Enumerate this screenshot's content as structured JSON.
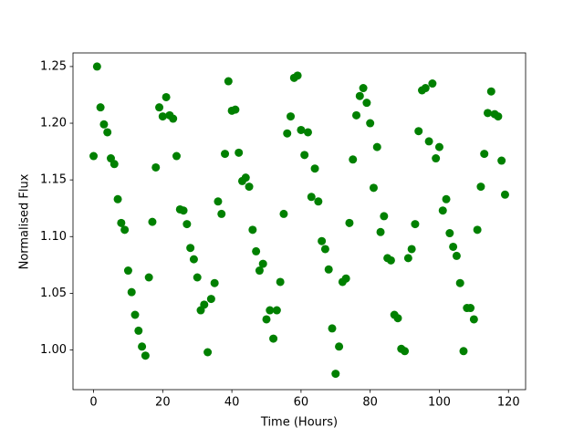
{
  "chart_data": {
    "type": "scatter",
    "xlabel": "Time (Hours)",
    "ylabel": "Normalised Flux",
    "color": "#008000",
    "x": [
      0,
      1,
      2,
      3,
      4,
      5,
      6,
      7,
      8,
      9,
      10,
      11,
      12,
      13,
      14,
      15,
      16,
      17,
      18,
      19,
      20,
      21,
      22,
      23,
      24,
      25,
      26,
      27,
      28,
      29,
      30,
      31,
      32,
      33,
      34,
      35,
      36,
      37,
      38,
      39,
      40,
      41,
      42,
      43,
      44,
      45,
      46,
      47,
      48,
      49,
      50,
      51,
      52,
      53,
      54,
      55,
      56,
      57,
      58,
      59,
      60,
      61,
      62,
      63,
      64,
      65,
      66,
      67,
      68,
      69,
      70,
      71,
      72,
      73,
      74,
      75,
      76,
      77,
      78,
      79,
      80,
      81,
      82,
      83,
      84,
      85,
      86,
      87,
      88,
      89,
      90,
      91,
      92,
      93,
      94,
      95,
      96,
      97,
      98,
      99,
      100,
      101,
      102,
      103,
      104,
      105,
      106,
      107,
      108,
      109,
      110,
      111,
      112,
      113,
      114,
      115,
      116,
      117,
      118,
      119
    ],
    "values": [
      1.171,
      1.25,
      1.214,
      1.199,
      1.192,
      1.169,
      1.164,
      1.133,
      1.112,
      1.106,
      1.07,
      1.051,
      1.031,
      1.017,
      1.003,
      0.995,
      1.064,
      1.113,
      1.161,
      1.214,
      1.206,
      1.223,
      1.207,
      1.204,
      1.171,
      1.124,
      1.123,
      1.111,
      1.09,
      1.08,
      1.064,
      1.035,
      1.04,
      0.998,
      1.045,
      1.059,
      1.131,
      1.12,
      1.173,
      1.237,
      1.211,
      1.212,
      1.174,
      1.149,
      1.152,
      1.144,
      1.106,
      1.087,
      1.07,
      1.076,
      1.027,
      1.035,
      1.01,
      1.035,
      1.06,
      1.12,
      1.191,
      1.206,
      1.24,
      1.242,
      1.194,
      1.172,
      1.192,
      1.135,
      1.16,
      1.131,
      1.096,
      1.089,
      1.071,
      1.019,
      0.979,
      1.003,
      1.06,
      1.063,
      1.112,
      1.168,
      1.207,
      1.224,
      1.231,
      1.218,
      1.2,
      1.143,
      1.179,
      1.104,
      1.118,
      1.081,
      1.079,
      1.031,
      1.028,
      1.001,
      0.999,
      1.081,
      1.089,
      1.111,
      1.193,
      1.229,
      1.231,
      1.184,
      1.235,
      1.169,
      1.179,
      1.123,
      1.133,
      1.103,
      1.091,
      1.083,
      1.059,
      0.999,
      1.037,
      1.037,
      1.027,
      1.106,
      1.144,
      1.173,
      1.209,
      1.228,
      1.208,
      1.206,
      1.167,
      1.137
    ],
    "xlim": [
      -5.95,
      124.95
    ],
    "ylim": [
      0.965,
      1.262
    ],
    "xticks": [
      0,
      20,
      40,
      60,
      80,
      100,
      120
    ],
    "yticks": [
      {
        "value": 1,
        "label": "1.00"
      },
      1.05,
      {
        "value": 1.1,
        "label": "1.10"
      },
      1.15,
      {
        "value": 1.2,
        "label": "1.20"
      },
      1.25
    ]
  }
}
